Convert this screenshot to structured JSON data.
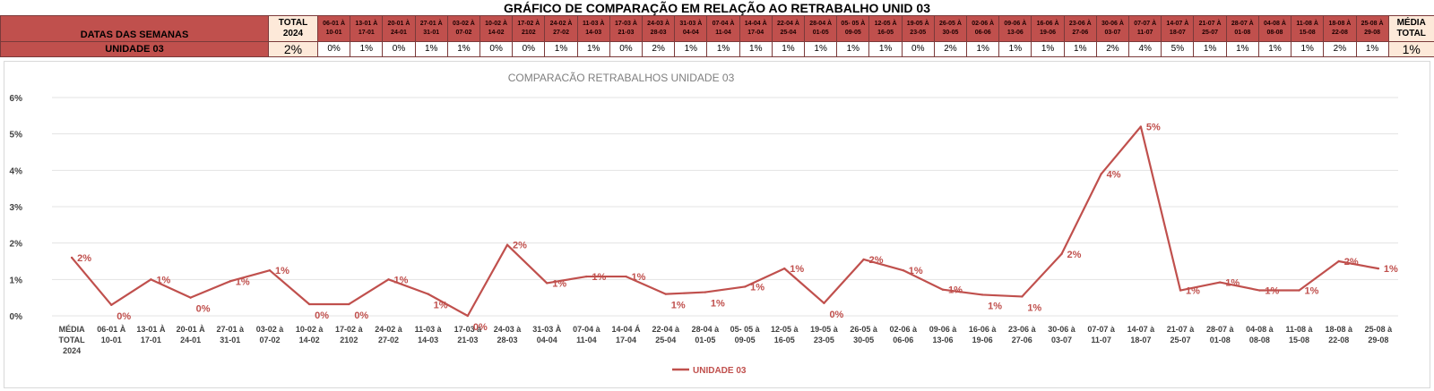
{
  "title": "GRÁFICO DE COMPARAÇÃO EM RELAÇÃO AO RETRABALHO UNID 03",
  "table": {
    "header_label": "DATAS DAS SEMANAS",
    "total_header": "TOTAL 2024",
    "media_header": "MÉDIA TOTAL",
    "row_label": "UNIDADE 03",
    "total_value": "2%",
    "media_value": "1%",
    "weeks": [
      "06-01 À 10-01",
      "13-01 À 17-01",
      "20-01 À 24-01",
      "27-01 À 31-01",
      "03-02 À 07-02",
      "10-02 À 14-02",
      "17-02 À 2102",
      "24-02 À 27-02",
      "11-03 À 14-03",
      "17-03 À 21-03",
      "24-03 À 28-03",
      "31-03 À 04-04",
      "07-04 À 11-04",
      "14-04 À 17-04",
      "22-04 À 25-04",
      "28-04 À 01-05",
      "05- 05 À 09-05",
      "12-05 À 16-05",
      "19-05 À 23-05",
      "26-05 À 30-05",
      "02-06 À 06-06",
      "09-06 À 13-06",
      "16-06 À 19-06",
      "23-06 À 27-06",
      "30-06 À 03-07",
      "07-07 À 11-07",
      "14-07 À 18-07",
      "21-07 À 25-07",
      "28-07 À 01-08",
      "04-08 À 08-08",
      "11-08 À 15-08",
      "18-08 À 22-08",
      "25-08 À 29-08"
    ],
    "values": [
      "0%",
      "1%",
      "0%",
      "1%",
      "1%",
      "0%",
      "0%",
      "1%",
      "1%",
      "0%",
      "2%",
      "1%",
      "1%",
      "1%",
      "1%",
      "1%",
      "1%",
      "1%",
      "0%",
      "2%",
      "1%",
      "1%",
      "1%",
      "1%",
      "2%",
      "4%",
      "5%",
      "1%",
      "1%",
      "1%",
      "1%",
      "2%",
      "1%"
    ]
  },
  "chart_data": {
    "type": "line",
    "title": "COMPARACÃO RETRABALHOS UNIDADE 03",
    "color": "#c0504d",
    "y_ticks": [
      "0%",
      "1%",
      "2%",
      "3%",
      "4%",
      "5%",
      "6%"
    ],
    "ylim": [
      0,
      6
    ],
    "grid": true,
    "legend_position": "bottom",
    "categories": [
      [
        "MÉDIA",
        "TOTAL",
        "2024"
      ],
      [
        "06-01 À",
        "10-01"
      ],
      [
        "13-01 À",
        "17-01"
      ],
      [
        "20-01 À",
        "24-01"
      ],
      [
        "27-01 à",
        "31-01"
      ],
      [
        "03-02 à",
        "07-02"
      ],
      [
        "10-02 à",
        "14-02"
      ],
      [
        "17-02 à",
        "2102"
      ],
      [
        "24-02 à",
        "27-02"
      ],
      [
        "11-03 à",
        "14-03"
      ],
      [
        "17-03 à",
        "21-03"
      ],
      [
        "24-03 à",
        "28-03"
      ],
      [
        "31-03 À",
        "04-04"
      ],
      [
        "07-04 à",
        "11-04"
      ],
      [
        "14-04 Á",
        "17-04"
      ],
      [
        "22-04 à",
        "25-04"
      ],
      [
        "28-04 à",
        "01-05"
      ],
      [
        "05- 05 à",
        "09-05"
      ],
      [
        "12-05 à",
        "16-05"
      ],
      [
        "19-05 à",
        "23-05"
      ],
      [
        "26-05 à",
        "30-05"
      ],
      [
        "02-06 à",
        "06-06"
      ],
      [
        "09-06 à",
        "13-06"
      ],
      [
        "16-06 à",
        "19-06"
      ],
      [
        "23-06 à",
        "27-06"
      ],
      [
        "30-06 à",
        "03-07"
      ],
      [
        "07-07 à",
        "11-07"
      ],
      [
        "14-07 à",
        "18-07"
      ],
      [
        "21-07 à",
        "25-07"
      ],
      [
        "28-07 à",
        "01-08"
      ],
      [
        "04-08 à",
        "08-08"
      ],
      [
        "11-08 à",
        "15-08"
      ],
      [
        "18-08 à",
        "22-08"
      ],
      [
        "25-08 à",
        "29-08"
      ]
    ],
    "series": [
      {
        "name": "UNIDADE 03",
        "values": [
          1.6,
          0.3,
          1.0,
          0.5,
          0.95,
          1.25,
          0.32,
          0.32,
          1.0,
          0.6,
          0.0,
          1.95,
          0.9,
          1.08,
          1.08,
          0.6,
          0.65,
          0.8,
          1.3,
          0.35,
          1.55,
          1.25,
          0.72,
          0.58,
          0.53,
          1.7,
          3.9,
          5.2,
          0.7,
          0.92,
          0.7,
          0.7,
          1.5,
          1.3
        ],
        "labels": [
          "2%",
          "0%",
          "1%",
          "0%",
          "1%",
          "1%",
          "0%",
          "0%",
          "1%",
          "1%",
          "0%",
          "2%",
          "1%",
          "1%",
          "1%",
          "1%",
          "1%",
          "1%",
          "1%",
          "0%",
          "2%",
          "1%",
          "1%",
          "1%",
          "1%",
          "2%",
          "4%",
          "5%",
          "1%",
          "1%",
          "1%",
          "1%",
          "2%",
          "1%"
        ]
      }
    ]
  }
}
